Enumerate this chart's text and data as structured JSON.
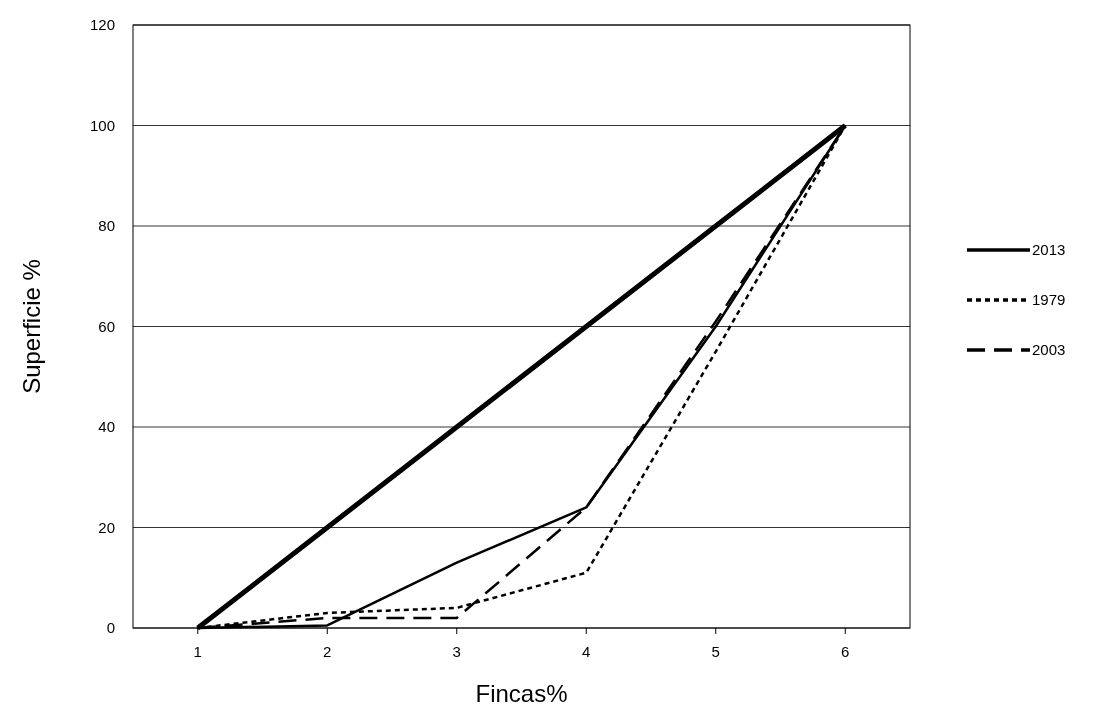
{
  "chart_data": {
    "type": "line",
    "xlabel": "Fincas%",
    "ylabel": "Superficie %",
    "categories": [
      "1",
      "2",
      "3",
      "4",
      "5",
      "6"
    ],
    "series": [
      {
        "color": "#000000",
        "line_style": "solid",
        "values": [
          0,
          20,
          40,
          60,
          80,
          100
        ]
      },
      {
        "name": "2013",
        "color": "#000000",
        "line_style": "solid",
        "values": [
          0,
          0.5,
          13,
          24,
          60,
          100
        ]
      },
      {
        "name": "1979",
        "color": "#000000",
        "line_style": "dotted",
        "values": [
          0,
          3,
          4,
          11,
          55,
          100
        ]
      },
      {
        "name": "2003",
        "color": "#000000",
        "line_style": "dashed",
        "values": [
          0,
          2,
          2,
          24,
          61,
          100
        ]
      }
    ],
    "ylim": [
      0,
      120
    ],
    "yticks": [
      0,
      20,
      40,
      60,
      80,
      100,
      120
    ],
    "grid": "y",
    "legend": "right",
    "marker": "none"
  }
}
